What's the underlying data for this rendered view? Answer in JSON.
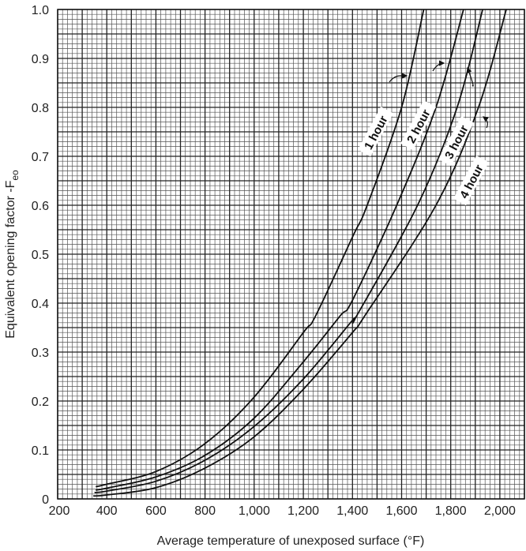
{
  "chart_data": {
    "type": "line",
    "title": "",
    "xlabel": "Average temperature of unexposed surface (°F)",
    "ylabel": "Equivalent opening factor -F",
    "ylabel_subscript": "eo",
    "xlim": [
      200,
      2100
    ],
    "ylim": [
      0,
      1.0
    ],
    "grid": true,
    "x_ticks": [
      200,
      400,
      600,
      800,
      1000,
      1200,
      1400,
      1600,
      1800,
      2000
    ],
    "x_tick_labels": [
      "200",
      "400",
      "600",
      "800",
      "1,000",
      "1,200",
      "1,400",
      "1,600",
      "1,800",
      "2,000"
    ],
    "y_ticks": [
      0,
      0.1,
      0.2,
      0.3,
      0.4,
      0.5,
      0.6,
      0.7,
      0.8,
      0.9,
      1.0
    ],
    "y_tick_labels": [
      "0",
      "0.1",
      "0.2",
      "0.3",
      "0.4",
      "0.5",
      "0.6",
      "0.7",
      "0.8",
      "0.9",
      "1.0"
    ],
    "series": [
      {
        "name": "1 hour",
        "x": [
          355,
          400,
          600,
          800,
          1000,
          1200,
          1250,
          1400,
          1460,
          1600,
          1690
        ],
        "y": [
          0.025,
          0.03,
          0.056,
          0.113,
          0.208,
          0.34,
          0.374,
          0.535,
          0.6,
          0.8,
          1.0
        ]
      },
      {
        "name": "2 hour",
        "x": [
          355,
          400,
          600,
          800,
          1000,
          1200,
          1350,
          1400,
          1580,
          1740,
          1852
        ],
        "y": [
          0.018,
          0.022,
          0.045,
          0.089,
          0.165,
          0.28,
          0.374,
          0.406,
          0.6,
          0.8,
          1.0
        ]
      },
      {
        "name": "3 hour",
        "x": [
          350,
          400,
          600,
          800,
          1000,
          1200,
          1400,
          1417,
          1665,
          1826,
          1930
        ],
        "y": [
          0.013,
          0.016,
          0.036,
          0.079,
          0.148,
          0.245,
          0.365,
          0.374,
          0.6,
          0.8,
          1.0
        ]
      },
      {
        "name": "4 hour",
        "x": [
          345,
          400,
          600,
          800,
          1000,
          1200,
          1400,
          1450,
          1740,
          1913,
          2026
        ],
        "y": [
          0.006,
          0.008,
          0.023,
          0.063,
          0.127,
          0.224,
          0.34,
          0.374,
          0.6,
          0.8,
          1.0
        ]
      }
    ]
  }
}
